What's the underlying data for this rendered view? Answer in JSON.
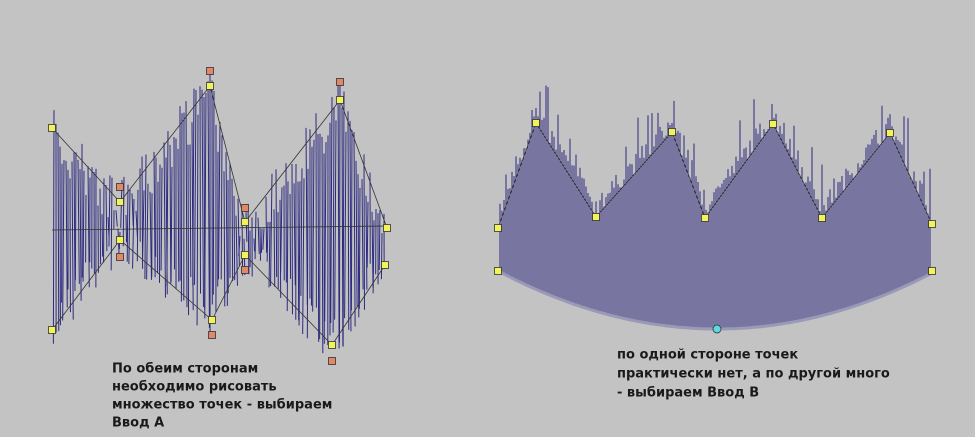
{
  "captions": [
    {
      "lines": [
        "По обеим сторонам",
        "необходимо рисовать",
        "множество точек - выбираем",
        "Ввод А"
      ]
    },
    {
      "lines": [
        "по одной стороне точек",
        "практически нет, а по другой много",
        "- выбираем Ввод В"
      ]
    }
  ]
}
